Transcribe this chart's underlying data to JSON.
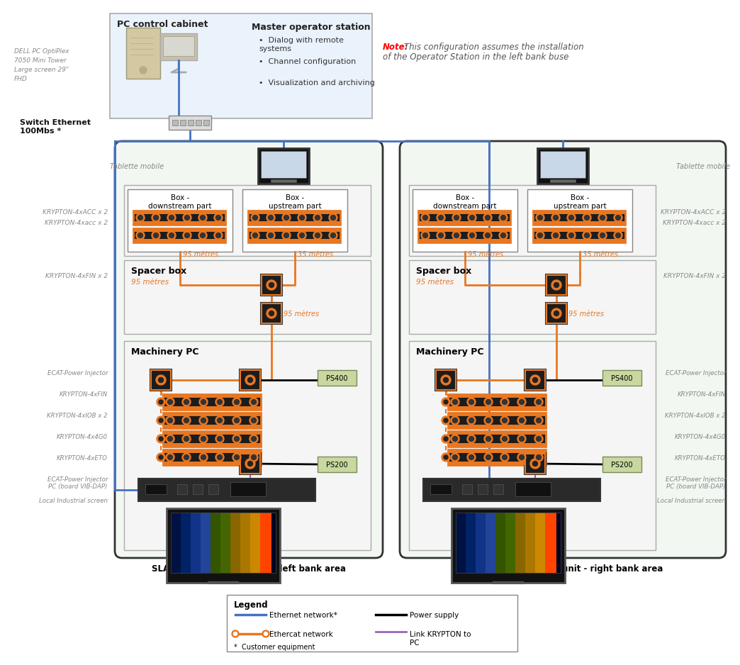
{
  "bg_color": "#ffffff",
  "pc_cabinet_label": "PC control cabinet",
  "master_station_label": "Master operator station",
  "master_bullets": [
    "Dialog with remote\nsystems",
    "Channel configuration",
    "Visualization and archiving"
  ],
  "switch_label": "Switch Ethernet\n100Mbs *",
  "note_bold": "Note:",
  "note_rest": " This configuration assumes the installation\nof the Operator Station in the left bank buse",
  "left_unit_label": "SLAVE measurement unit - left bank area",
  "right_unit_label": "SLAVE measurement unit - right bank area",
  "box_downstream": "Box -\ndownstream part",
  "box_upstream": "Box -\nupstream part",
  "spacer_box": "Spacer box",
  "machinery_pc": "Machinery PC",
  "orange": "#E87722",
  "blue": "#4472C4",
  "black": "#000000",
  "purple": "#9966BB",
  "dark_gray": "#444444",
  "mid_gray": "#888888",
  "light_blue_bg": "#EAF2FB",
  "slave_bg": "#F2F7F2",
  "inner_box_bg": "#FFFFFF",
  "PS_color": "#C8D8A0",
  "left_top_label": "DELL PC OptiPlex\n7050 Mini Tower\nLarge screen 29\"\nFHD",
  "tablette_label": "Tablette mobile",
  "left_mid_labels": [
    "KRYPTON-4xACC x 2",
    "KRYPTON-4xacc x 2"
  ],
  "left_spacer_label": "KRYPTON-4xFIN x 2",
  "left_bot_labels": [
    "ECAT-Power Injector",
    "KRYPTON-4xFIN",
    "KRYPTON-4xIOB x 2",
    "KRYPTON-4x4G0",
    "KRYPTON-4xETO",
    "ECAT-Power Injector\nPC (board VIB-DAP)",
    "Local Industrial screen"
  ],
  "right_top_label": "Tablette mobile",
  "right_mid_labels": [
    "KRYPTON-4xACC x 2",
    "KRYPTON-4xacc x 2"
  ],
  "right_spacer_label": "KRYPTON-4xFIN x 2",
  "right_bot_labels": [
    "ECAT-Power Injector",
    "KRYPTON-4xFIN",
    "KRYPTON-4xIOB x 2",
    "KRYPTON-4x4G0",
    "KRYPTON-4xETO",
    "ECAT-Power Injector\nPC (board VIB-DAP)",
    "Local Industrial screen"
  ]
}
